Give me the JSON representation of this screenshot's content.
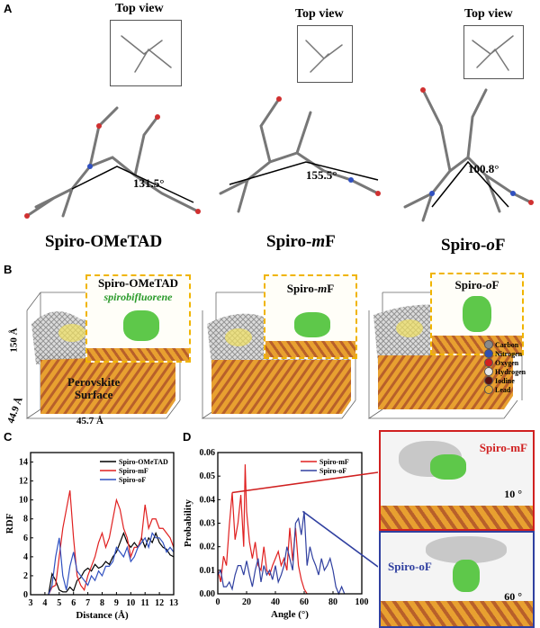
{
  "panels": {
    "a": "A",
    "b": "B",
    "c": "C",
    "d": "D"
  },
  "panel_a": {
    "top_view": "Top view",
    "molecules": [
      {
        "name": "Spiro-OMeTAD",
        "angle": "131.5°"
      },
      {
        "name_prefix": "Spiro-",
        "name_italic": "m",
        "name_suffix": "F",
        "angle": "155.5°"
      },
      {
        "name_prefix": "Spiro-",
        "name_italic": "o",
        "name_suffix": "F",
        "angle": "100.8°"
      }
    ]
  },
  "panel_b": {
    "insets": [
      {
        "title": "Spiro-OMeTAD",
        "subtitle": "spirobifluorene"
      },
      {
        "title_prefix": "Spiro-",
        "title_italic": "m",
        "title_suffix": "F"
      },
      {
        "title_prefix": "Spiro-",
        "title_italic": "o",
        "title_suffix": "F"
      }
    ],
    "surface_label_1": "Perovskite",
    "surface_label_2": "Surface",
    "dim_height": "150 Å",
    "dim_depth": "44.9 Å",
    "dim_width": "45.7 Å",
    "legend": [
      {
        "label": "Carbon",
        "color": "#8a8a8a"
      },
      {
        "label": "Nitrogen",
        "color": "#2f4fb0"
      },
      {
        "label": "Oxygen",
        "color": "#d02020"
      },
      {
        "label": "Hydrogen",
        "color": "#e8e8e8"
      },
      {
        "label": "Iodine",
        "color": "#5a1010"
      },
      {
        "label": "Lead",
        "color": "#e8a830"
      }
    ]
  },
  "panel_d_insets": {
    "top": {
      "label": "Spiro-mF",
      "angle": "10 °",
      "color": "#e02020"
    },
    "bottom": {
      "label": "Spiro-oF",
      "angle": "60 °",
      "color": "#3040a0"
    }
  },
  "chart_data": [
    {
      "type": "line",
      "title": "",
      "xlabel": "Distance (Å)",
      "ylabel": "RDF",
      "xlim": [
        3,
        13
      ],
      "ylim": [
        0,
        15
      ],
      "xticks": [
        3,
        4,
        5,
        6,
        7,
        8,
        9,
        10,
        11,
        12,
        13
      ],
      "yticks": [
        0,
        2,
        4,
        6,
        8,
        10,
        12,
        14
      ],
      "legend": "top-right",
      "grid": false,
      "x": [
        4.25,
        4.5,
        4.75,
        5,
        5.25,
        5.5,
        5.75,
        6,
        6.25,
        6.5,
        6.75,
        7,
        7.25,
        7.5,
        7.75,
        8,
        8.25,
        8.5,
        8.75,
        9,
        9.25,
        9.5,
        9.75,
        10,
        10.25,
        10.5,
        10.75,
        11,
        11.25,
        11.5,
        11.75,
        12,
        12.25,
        12.5,
        12.75,
        13
      ],
      "series": [
        {
          "name": "Spiro-OMeTAD",
          "color": "#000000",
          "values": [
            0,
            2.2,
            1.5,
            0.5,
            0.3,
            0.3,
            0.8,
            0.4,
            1.5,
            1.8,
            2.5,
            2.8,
            2.5,
            3.2,
            2.8,
            3,
            3.5,
            3.2,
            4,
            4.5,
            5.5,
            6.5,
            5.5,
            5,
            5.5,
            5,
            6,
            5,
            6,
            5.5,
            6.5,
            5.5,
            5,
            4.8,
            4.2,
            4
          ]
        },
        {
          "name": "Spiro-mF",
          "color": "#e02020",
          "values": [
            0,
            0.8,
            1,
            4,
            7,
            9,
            11,
            6,
            2,
            1,
            0.5,
            2,
            3,
            4,
            5.5,
            6.5,
            5,
            6,
            8,
            10,
            9,
            7,
            6,
            4,
            5,
            5,
            6,
            9.5,
            7,
            8,
            8,
            7,
            7,
            6.5,
            6,
            5
          ]
        },
        {
          "name": "Spiro-oF",
          "color": "#3050c0",
          "values": [
            0,
            1,
            4,
            6,
            2,
            0.5,
            3,
            4.5,
            2.5,
            2,
            1.5,
            1,
            2,
            1.5,
            2.5,
            2,
            3,
            3,
            3.5,
            5,
            4.5,
            4,
            5,
            3.5,
            4,
            5,
            5.5,
            6,
            5,
            6.5,
            6,
            6,
            5.5,
            4.5,
            5,
            4.5
          ]
        }
      ]
    },
    {
      "type": "line",
      "title": "",
      "xlabel": "Angle (°)",
      "ylabel": "Probability",
      "xlim": [
        0,
        100
      ],
      "ylim": [
        0,
        0.06
      ],
      "xticks": [
        0,
        20,
        40,
        60,
        80,
        100
      ],
      "yticks": [
        0,
        0.01,
        0.02,
        0.03,
        0.04,
        0.05,
        0.06
      ],
      "legend": "top-right",
      "grid": false,
      "series": [
        {
          "name": "Spiro-mF",
          "color": "#e02020",
          "x": [
            0,
            2,
            4,
            6,
            8,
            10,
            12,
            14,
            16,
            18,
            19,
            20,
            22,
            24,
            26,
            28,
            30,
            32,
            34,
            36,
            38,
            40,
            42,
            44,
            46,
            48,
            50,
            52,
            54,
            56,
            58,
            60,
            62
          ],
          "values": [
            0.01,
            0.005,
            0.016,
            0.012,
            0.029,
            0.043,
            0.023,
            0.03,
            0.042,
            0.02,
            0.055,
            0.035,
            0.022,
            0.015,
            0.022,
            0.012,
            0.01,
            0.02,
            0.01,
            0.008,
            0.012,
            0.015,
            0.018,
            0.012,
            0.015,
            0.01,
            0.028,
            0.014,
            0.028,
            0.012,
            0.006,
            0.002,
            0
          ]
        },
        {
          "name": "Spiro-oF",
          "color": "#3040a0",
          "x": [
            0,
            2,
            4,
            6,
            8,
            10,
            12,
            14,
            16,
            18,
            20,
            22,
            24,
            26,
            28,
            30,
            32,
            34,
            36,
            38,
            40,
            42,
            44,
            46,
            48,
            50,
            52,
            54,
            56,
            58,
            60,
            62,
            64,
            66,
            68,
            70,
            72,
            74,
            76,
            78,
            80,
            82,
            84,
            86,
            88
          ],
          "values": [
            0.008,
            0.01,
            0.003,
            0.003,
            0.005,
            0.002,
            0.008,
            0.012,
            0.012,
            0.008,
            0.014,
            0.008,
            0.003,
            0.01,
            0.015,
            0.005,
            0.012,
            0.008,
            0.01,
            0.006,
            0.012,
            0.005,
            0.008,
            0.012,
            0.02,
            0.015,
            0.01,
            0.03,
            0.032,
            0.025,
            0.035,
            0.012,
            0.02,
            0.015,
            0.012,
            0.008,
            0.015,
            0.01,
            0.012,
            0.015,
            0.01,
            0.003,
            0,
            0.003,
            0
          ]
        }
      ]
    }
  ]
}
